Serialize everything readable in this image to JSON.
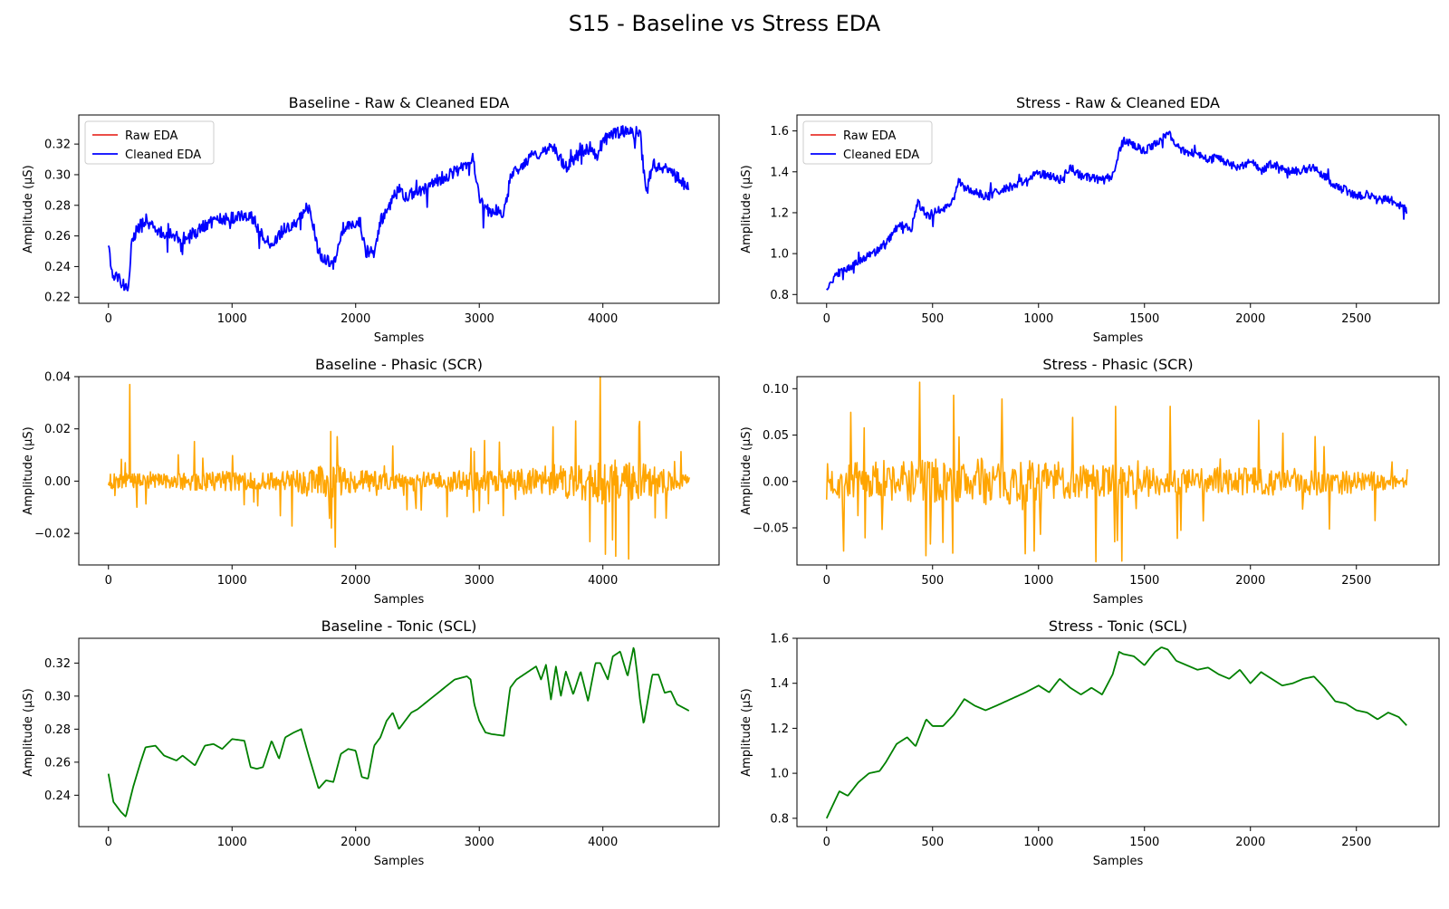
{
  "figure": {
    "title": "S15 - Baseline vs Stress EDA"
  },
  "chart_data": [
    {
      "id": "baseline-raw",
      "type": "line",
      "title": "Baseline - Raw & Cleaned EDA",
      "xlabel": "Samples",
      "ylabel": "Amplitude (μS)",
      "xlim": [
        -240,
        4940
      ],
      "ylim": [
        0.216,
        0.339
      ],
      "xticks": [
        0,
        1000,
        2000,
        3000,
        4000
      ],
      "xtick_labels": [
        "0",
        "1000",
        "2000",
        "3000",
        "4000"
      ],
      "yticks": [
        0.22,
        0.24,
        0.26,
        0.28,
        0.3,
        0.32
      ],
      "ytick_labels": [
        "0.22",
        "0.24",
        "0.26",
        "0.28",
        "0.30",
        "0.32"
      ],
      "legend": {
        "placement": "top-left",
        "entries": [
          {
            "name": "Raw EDA",
            "color": "#e8352e"
          },
          {
            "name": "Cleaned EDA",
            "color": "#0000ff"
          }
        ]
      },
      "series": [
        {
          "name": "Cleaned EDA",
          "color": "#0000ff",
          "line_width": 1.8,
          "noise": 0.004,
          "x": [
            0,
            30,
            80,
            130,
            160,
            190,
            220,
            280,
            380,
            500,
            600,
            700,
            800,
            900,
            1000,
            1100,
            1180,
            1220,
            1300,
            1350,
            1400,
            1480,
            1530,
            1600,
            1640,
            1700,
            1760,
            1800,
            1840,
            1900,
            1960,
            2000,
            2040,
            2080,
            2100,
            2150,
            2200,
            2250,
            2300,
            2350,
            2400,
            2500,
            2600,
            2700,
            2800,
            2900,
            2950,
            3000,
            3050,
            3100,
            3150,
            3200,
            3250,
            3300,
            3400,
            3500,
            3600,
            3700,
            3800,
            3900,
            3950,
            4000,
            4100,
            4200,
            4250,
            4300,
            4350,
            4400,
            4500,
            4600,
            4700
          ],
          "y": [
            0.256,
            0.236,
            0.232,
            0.226,
            0.228,
            0.255,
            0.262,
            0.27,
            0.264,
            0.261,
            0.258,
            0.262,
            0.268,
            0.271,
            0.272,
            0.274,
            0.271,
            0.262,
            0.256,
            0.257,
            0.263,
            0.266,
            0.268,
            0.28,
            0.275,
            0.249,
            0.245,
            0.24,
            0.245,
            0.265,
            0.268,
            0.268,
            0.268,
            0.25,
            0.25,
            0.25,
            0.27,
            0.275,
            0.285,
            0.29,
            0.286,
            0.289,
            0.293,
            0.298,
            0.302,
            0.306,
            0.311,
            0.285,
            0.278,
            0.275,
            0.277,
            0.275,
            0.299,
            0.303,
            0.311,
            0.315,
            0.318,
            0.305,
            0.313,
            0.318,
            0.311,
            0.322,
            0.327,
            0.329,
            0.328,
            0.329,
            0.286,
            0.307,
            0.304,
            0.298,
            0.29
          ]
        }
      ]
    },
    {
      "id": "stress-raw",
      "type": "line",
      "title": "Stress - Raw & Cleaned EDA",
      "xlabel": "Samples",
      "ylabel": "Amplitude (μS)",
      "xlim": [
        -140,
        2890
      ],
      "ylim": [
        0.757,
        1.678
      ],
      "xticks": [
        0,
        500,
        1000,
        1500,
        2000,
        2500
      ],
      "xtick_labels": [
        "0",
        "500",
        "1000",
        "1500",
        "2000",
        "2500"
      ],
      "yticks": [
        0.8,
        1.0,
        1.2,
        1.4,
        1.6
      ],
      "ytick_labels": [
        "0.8",
        "1.0",
        "1.2",
        "1.4",
        "1.6"
      ],
      "legend": {
        "placement": "top-left",
        "entries": [
          {
            "name": "Raw EDA",
            "color": "#e8352e"
          },
          {
            "name": "Cleaned EDA",
            "color": "#0000ff"
          }
        ]
      },
      "series": [
        {
          "name": "Cleaned EDA",
          "color": "#0000ff",
          "line_width": 1.8,
          "noise": 0.02,
          "x": [
            0,
            50,
            100,
            150,
            200,
            250,
            300,
            350,
            400,
            430,
            450,
            480,
            500,
            550,
            600,
            620,
            650,
            700,
            750,
            800,
            850,
            900,
            950,
            1000,
            1050,
            1100,
            1150,
            1200,
            1250,
            1300,
            1350,
            1380,
            1400,
            1450,
            1500,
            1550,
            1580,
            1610,
            1650,
            1700,
            1750,
            1800,
            1850,
            1900,
            1950,
            2000,
            2050,
            2100,
            2150,
            2200,
            2250,
            2300,
            2350,
            2400,
            2450,
            2500,
            2550,
            2600,
            2650,
            2700,
            2740
          ],
          "y": [
            0.82,
            0.9,
            0.93,
            0.96,
            0.99,
            1.02,
            1.08,
            1.14,
            1.12,
            1.25,
            1.22,
            1.18,
            1.2,
            1.22,
            1.26,
            1.36,
            1.32,
            1.3,
            1.28,
            1.3,
            1.32,
            1.34,
            1.37,
            1.39,
            1.38,
            1.36,
            1.42,
            1.38,
            1.37,
            1.36,
            1.38,
            1.5,
            1.55,
            1.53,
            1.5,
            1.54,
            1.56,
            1.6,
            1.52,
            1.5,
            1.48,
            1.46,
            1.47,
            1.44,
            1.42,
            1.45,
            1.4,
            1.44,
            1.42,
            1.4,
            1.41,
            1.42,
            1.38,
            1.33,
            1.31,
            1.28,
            1.29,
            1.26,
            1.27,
            1.24,
            1.21
          ]
        }
      ]
    },
    {
      "id": "baseline-phasic",
      "type": "line",
      "title": "Baseline - Phasic (SCR)",
      "xlabel": "Samples",
      "ylabel": "Amplitude (μS)",
      "xlim": [
        -240,
        4940
      ],
      "ylim": [
        -0.0321,
        0.04
      ],
      "xticks": [
        0,
        1000,
        2000,
        3000,
        4000
      ],
      "xtick_labels": [
        "0",
        "1000",
        "2000",
        "3000",
        "4000"
      ],
      "yticks": [
        -0.02,
        0.0,
        0.02,
        0.04
      ],
      "ytick_labels": [
        "−0.02",
        "0.00",
        "0.02",
        "0.04"
      ],
      "series": [
        {
          "name": "Phasic",
          "color": "#ffa500",
          "line_width": 1.6,
          "synthetic": "spiky",
          "n_points": 900,
          "x_range": [
            0,
            4700
          ],
          "seed": 15,
          "amp_knots_x": [
            0,
            500,
            900,
            1300,
            1700,
            1800,
            1900,
            2300,
            2800,
            3200,
            3500,
            3800,
            4000,
            4300,
            4700
          ],
          "amp_knots": [
            0.003,
            0.003,
            0.004,
            0.003,
            0.006,
            0.008,
            0.005,
            0.003,
            0.004,
            0.004,
            0.006,
            0.007,
            0.009,
            0.007,
            0.002
          ],
          "peaks_x": [
            170,
            1800,
            1850,
            3780,
            4020,
            4290
          ],
          "peaks_y": [
            0.037,
            0.019,
            0.017,
            0.023,
            -0.028,
            0.021
          ]
        }
      ]
    },
    {
      "id": "stress-phasic",
      "type": "line",
      "title": "Stress - Phasic (SCR)",
      "xlabel": "Samples",
      "ylabel": "Amplitude (μS)",
      "xlim": [
        -140,
        2890
      ],
      "ylim": [
        -0.09,
        0.113
      ],
      "xticks": [
        0,
        500,
        1000,
        1500,
        2000,
        2500
      ],
      "xtick_labels": [
        "0",
        "500",
        "1000",
        "1500",
        "2000",
        "2500"
      ],
      "yticks": [
        -0.05,
        0.0,
        0.05,
        0.1
      ],
      "ytick_labels": [
        "−0.05",
        "0.00",
        "0.05",
        "0.10"
      ],
      "series": [
        {
          "name": "Phasic",
          "color": "#ffa500",
          "line_width": 1.6,
          "synthetic": "spiky",
          "n_points": 650,
          "x_range": [
            0,
            2740
          ],
          "seed": 7,
          "amp_knots_x": [
            0,
            400,
            800,
            1200,
            1600,
            2000,
            2400,
            2740
          ],
          "amp_knots": [
            0.02,
            0.025,
            0.025,
            0.02,
            0.015,
            0.015,
            0.015,
            0.006
          ],
          "peaks_x": [
            440,
            470,
            600,
            980,
            1160,
            1360,
            1620,
            2040
          ],
          "peaks_y": [
            0.107,
            -0.08,
            0.093,
            -0.075,
            0.069,
            -0.065,
            0.081,
            0.066
          ]
        }
      ]
    },
    {
      "id": "baseline-tonic",
      "type": "line",
      "title": "Baseline - Tonic (SCL)",
      "xlabel": "Samples",
      "ylabel": "Amplitude (μS)",
      "xlim": [
        -240,
        4940
      ],
      "ylim": [
        0.221,
        0.335
      ],
      "xticks": [
        0,
        1000,
        2000,
        3000,
        4000
      ],
      "xtick_labels": [
        "0",
        "1000",
        "2000",
        "3000",
        "4000"
      ],
      "yticks": [
        0.24,
        0.26,
        0.28,
        0.3,
        0.32
      ],
      "ytick_labels": [
        "0.24",
        "0.26",
        "0.28",
        "0.30",
        "0.32"
      ],
      "series": [
        {
          "name": "Tonic",
          "color": "#008000",
          "line_width": 1.8,
          "x": [
            0,
            40,
            100,
            140,
            200,
            260,
            300,
            380,
            450,
            550,
            600,
            700,
            780,
            850,
            920,
            1000,
            1100,
            1150,
            1200,
            1250,
            1320,
            1380,
            1430,
            1500,
            1560,
            1620,
            1700,
            1760,
            1820,
            1880,
            1940,
            2000,
            2050,
            2100,
            2150,
            2200,
            2250,
            2300,
            2350,
            2400,
            2450,
            2500,
            2600,
            2700,
            2800,
            2900,
            2930,
            2960,
            3000,
            3050,
            3100,
            3200,
            3250,
            3300,
            3400,
            3460,
            3500,
            3540,
            3580,
            3620,
            3660,
            3700,
            3760,
            3820,
            3880,
            3940,
            3980,
            4040,
            4080,
            4140,
            4200,
            4250,
            4280,
            4300,
            4330,
            4400,
            4450,
            4500,
            4550,
            4600,
            4700
          ],
          "y": [
            0.253,
            0.236,
            0.23,
            0.227,
            0.245,
            0.26,
            0.269,
            0.27,
            0.264,
            0.261,
            0.264,
            0.258,
            0.27,
            0.271,
            0.268,
            0.274,
            0.273,
            0.257,
            0.256,
            0.257,
            0.273,
            0.262,
            0.275,
            0.278,
            0.28,
            0.264,
            0.244,
            0.249,
            0.248,
            0.265,
            0.268,
            0.267,
            0.251,
            0.25,
            0.27,
            0.275,
            0.285,
            0.29,
            0.28,
            0.285,
            0.29,
            0.292,
            0.298,
            0.304,
            0.31,
            0.312,
            0.31,
            0.295,
            0.285,
            0.278,
            0.277,
            0.276,
            0.305,
            0.31,
            0.315,
            0.318,
            0.31,
            0.319,
            0.298,
            0.318,
            0.3,
            0.315,
            0.301,
            0.315,
            0.297,
            0.32,
            0.32,
            0.31,
            0.324,
            0.327,
            0.312,
            0.33,
            0.312,
            0.298,
            0.283,
            0.313,
            0.313,
            0.302,
            0.303,
            0.295,
            0.291
          ]
        }
      ]
    },
    {
      "id": "stress-tonic",
      "type": "line",
      "title": "Stress - Tonic (SCL)",
      "xlabel": "Samples",
      "ylabel": "Amplitude (μS)",
      "xlim": [
        -140,
        2890
      ],
      "ylim": [
        0.763,
        1.6
      ],
      "xticks": [
        0,
        500,
        1000,
        1500,
        2000,
        2500
      ],
      "xtick_labels": [
        "0",
        "500",
        "1000",
        "1500",
        "2000",
        "2500"
      ],
      "yticks": [
        0.8,
        1.0,
        1.2,
        1.4,
        1.6
      ],
      "ytick_labels": [
        "0.8",
        "1.0",
        "1.2",
        "1.4",
        "1.6"
      ],
      "series": [
        {
          "name": "Tonic",
          "color": "#008000",
          "line_width": 1.8,
          "x": [
            0,
            30,
            60,
            100,
            150,
            200,
            250,
            280,
            330,
            380,
            420,
            470,
            500,
            550,
            600,
            650,
            700,
            750,
            800,
            870,
            940,
            1000,
            1050,
            1100,
            1150,
            1200,
            1250,
            1300,
            1350,
            1380,
            1400,
            1450,
            1500,
            1550,
            1580,
            1610,
            1650,
            1700,
            1750,
            1800,
            1850,
            1900,
            1950,
            2000,
            2050,
            2100,
            2150,
            2200,
            2250,
            2300,
            2350,
            2400,
            2450,
            2500,
            2550,
            2600,
            2650,
            2700,
            2740
          ],
          "y": [
            0.8,
            0.86,
            0.92,
            0.9,
            0.96,
            1.0,
            1.01,
            1.05,
            1.13,
            1.16,
            1.12,
            1.24,
            1.21,
            1.21,
            1.26,
            1.33,
            1.3,
            1.28,
            1.3,
            1.33,
            1.36,
            1.39,
            1.36,
            1.42,
            1.38,
            1.35,
            1.38,
            1.35,
            1.44,
            1.54,
            1.53,
            1.52,
            1.48,
            1.54,
            1.56,
            1.55,
            1.5,
            1.48,
            1.46,
            1.47,
            1.44,
            1.42,
            1.46,
            1.4,
            1.45,
            1.42,
            1.39,
            1.4,
            1.42,
            1.43,
            1.38,
            1.32,
            1.31,
            1.28,
            1.27,
            1.24,
            1.27,
            1.25,
            1.21
          ]
        }
      ]
    }
  ]
}
